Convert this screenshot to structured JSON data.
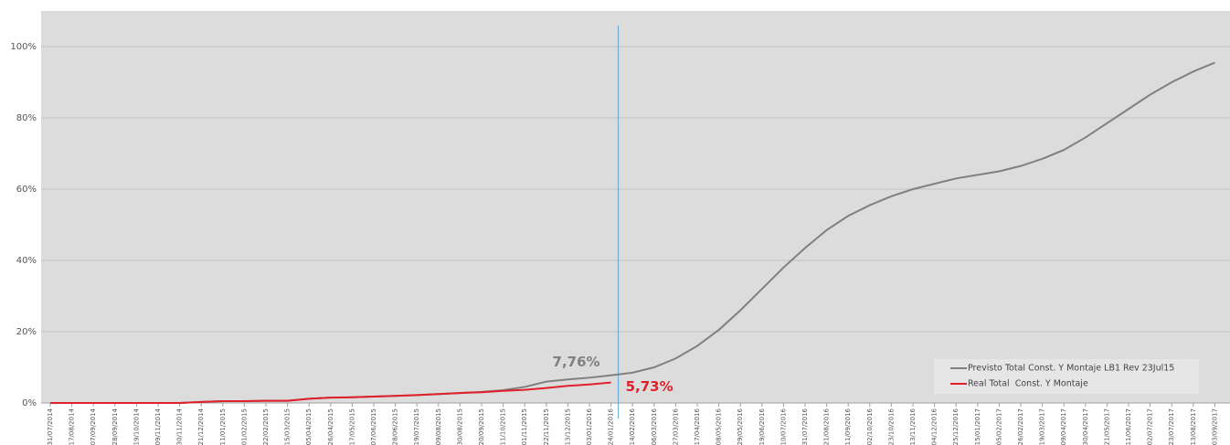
{
  "chart_data": {
    "type": "line",
    "categories": [
      "31/07/2014",
      "17/08/2014",
      "07/09/2014",
      "28/09/2014",
      "19/10/2014",
      "09/11/2014",
      "30/11/2014",
      "21/12/2014",
      "11/01/2015",
      "01/02/2015",
      "22/02/2015",
      "15/03/2015",
      "05/04/2015",
      "26/04/2015",
      "17/05/2015",
      "07/06/2015",
      "28/06/2015",
      "19/07/2015",
      "09/08/2015",
      "30/08/2015",
      "20/09/2015",
      "11/10/2015",
      "01/11/2015",
      "22/11/2015",
      "13/12/2015",
      "03/01/2016",
      "24/01/2016",
      "14/02/2016",
      "06/03/2016",
      "27/03/2016",
      "17/04/2016",
      "08/05/2016",
      "29/05/2016",
      "19/06/2016",
      "10/07/2016",
      "31/07/2016",
      "21/08/2016",
      "11/09/2016",
      "02/10/2016",
      "23/10/2016",
      "13/11/2016",
      "04/12/2016",
      "25/12/2016",
      "15/01/2017",
      "05/02/2017",
      "26/02/2017",
      "19/03/2017",
      "09/04/2017",
      "30/04/2017",
      "21/05/2017",
      "11/06/2017",
      "02/07/2017",
      "23/07/2017",
      "13/08/2017",
      "03/09/2017"
    ],
    "series": [
      {
        "name": "Previsto Total Const. Y Montaje LB1 Rev 23Jul15",
        "color": "#808080",
        "values": [
          0,
          0,
          0,
          0,
          0,
          0,
          0,
          0.3,
          0.5,
          0.5,
          0.6,
          0.6,
          1.2,
          1.5,
          1.6,
          1.8,
          2.0,
          2.2,
          2.5,
          2.8,
          3.1,
          3.6,
          4.5,
          6.0,
          6.6,
          7.1,
          7.76,
          8.5,
          10.0,
          12.5,
          16,
          20.5,
          26,
          32,
          38,
          43.5,
          48.5,
          52.5,
          55.5,
          58,
          60,
          61.5,
          63,
          64,
          65,
          66.5,
          68.5,
          71,
          74.5,
          78.5,
          82.5,
          86.5,
          90,
          93,
          95.5
        ],
        "value_labels": [
          null,
          null,
          null,
          null,
          null,
          null,
          null,
          null,
          null,
          null,
          null,
          null,
          null,
          null,
          null,
          null,
          null,
          null,
          null,
          null,
          null,
          null,
          null,
          null,
          null,
          null,
          "7,76%",
          null,
          null,
          null,
          null,
          null,
          null,
          null,
          null,
          null,
          null,
          null,
          null,
          null,
          null,
          null,
          null,
          null,
          null,
          null,
          null,
          null,
          null,
          null,
          null,
          null,
          null,
          null,
          null
        ]
      },
      {
        "name": "Real Total  Const. Y Montaje",
        "color": "#e0202a",
        "values": [
          0,
          0,
          0,
          0,
          0,
          0,
          0,
          0.3,
          0.5,
          0.5,
          0.6,
          0.6,
          1.2,
          1.5,
          1.6,
          1.8,
          2.0,
          2.2,
          2.5,
          2.8,
          3.0,
          3.4,
          3.7,
          4.2,
          4.8,
          5.2,
          5.73,
          null,
          null,
          null,
          null,
          null,
          null,
          null,
          null,
          null,
          null,
          null,
          null,
          null,
          null,
          null,
          null,
          null,
          null,
          null,
          null,
          null,
          null,
          null,
          null,
          null,
          null,
          null,
          null
        ],
        "value_labels": [
          null,
          null,
          null,
          null,
          null,
          null,
          null,
          null,
          null,
          null,
          null,
          null,
          null,
          null,
          null,
          null,
          null,
          null,
          null,
          null,
          null,
          null,
          null,
          null,
          null,
          null,
          "5,73%",
          null,
          null,
          null,
          null,
          null,
          null,
          null,
          null,
          null,
          null,
          null,
          null,
          null,
          null,
          null,
          null,
          null,
          null,
          null,
          null,
          null,
          null,
          null,
          null,
          null,
          null,
          null,
          null
        ]
      }
    ],
    "ylim": [
      0,
      110
    ],
    "yticks": [
      {
        "value": 0,
        "label": "0%"
      },
      {
        "value": 20,
        "label": "20%"
      },
      {
        "value": 40,
        "label": "40%"
      },
      {
        "value": 60,
        "label": "60%"
      },
      {
        "value": 80,
        "label": "80%"
      },
      {
        "value": 100,
        "label": "100%"
      }
    ],
    "grid": true,
    "legend": "lower right"
  }
}
